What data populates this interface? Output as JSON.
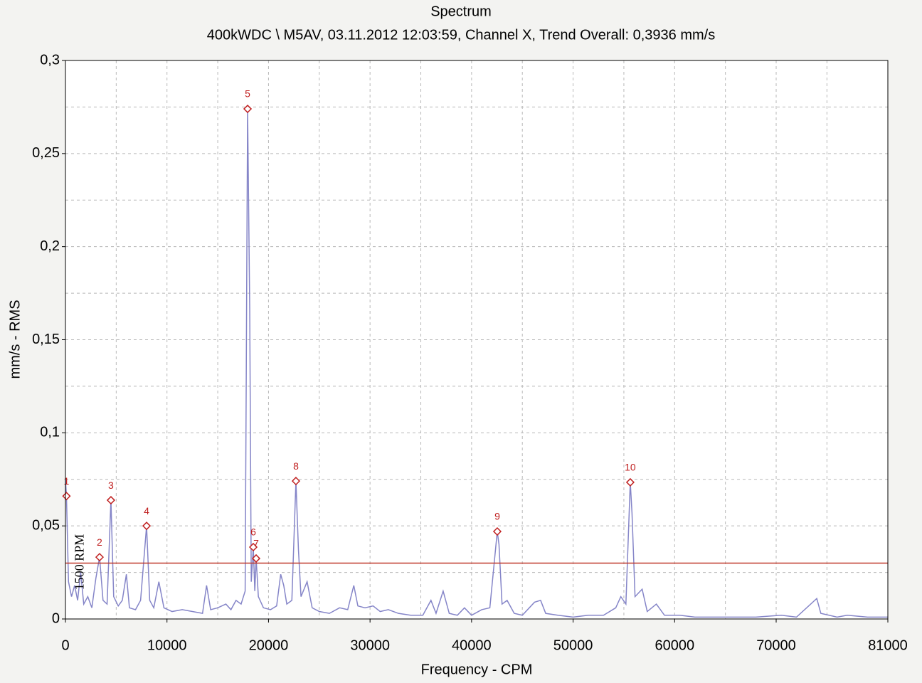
{
  "chart_data": {
    "type": "spectrum",
    "title": "Spectrum",
    "subtitle": "400kWDC \\ M5AV, 03.11.2012 12:03:59, Channel X, Trend Overall: 0,3936 mm/s",
    "x_label": "Frequency - CPM",
    "y_label": "mm/s - RMS",
    "xlim": [
      0,
      81000
    ],
    "ylim": [
      0,
      0.3
    ],
    "xticks": [
      0,
      10000,
      20000,
      30000,
      40000,
      50000,
      60000,
      70000,
      81000
    ],
    "xminorticks": [
      5000,
      15000,
      25000,
      35000,
      45000,
      55000,
      65000,
      75000
    ],
    "yticks": [
      0,
      {
        "value": 0.05,
        "label": "0,05"
      },
      {
        "value": 0.1,
        "label": "0,1"
      },
      {
        "value": 0.15,
        "label": "0,15"
      },
      {
        "value": 0.2,
        "label": "0,2"
      },
      {
        "value": 0.25,
        "label": "0,25"
      },
      {
        "value": 0.3,
        "label": "0,3"
      }
    ],
    "yminorticks": [
      0.025,
      0.075,
      0.125,
      0.175,
      0.225,
      0.275
    ],
    "grid": true,
    "color": "#8585c8",
    "x": [
      0,
      100,
      300,
      600,
      900,
      1200,
      1500,
      1800,
      2200,
      2600,
      3000,
      3360,
      3700,
      4100,
      4480,
      4750,
      5200,
      5600,
      6000,
      6300,
      6900,
      7400,
      7990,
      8300,
      8700,
      9200,
      9700,
      10500,
      11500,
      12500,
      13500,
      13900,
      14300,
      15000,
      15800,
      16300,
      16800,
      17300,
      17700,
      17940,
      18150,
      18300,
      18500,
      18650,
      18780,
      19000,
      19500,
      20200,
      20800,
      21200,
      21500,
      21800,
      22300,
      22700,
      22950,
      23200,
      23800,
      24300,
      25000,
      26000,
      27000,
      27800,
      28400,
      28800,
      29500,
      30300,
      31000,
      31800,
      32800,
      34000,
      35200,
      36000,
      36500,
      37200,
      37800,
      38600,
      39300,
      40000,
      41000,
      41800,
      42530,
      42700,
      43000,
      43500,
      44200,
      45000,
      46200,
      46800,
      47300,
      48500,
      50000,
      51500,
      53000,
      54200,
      54700,
      55200,
      55630,
      55800,
      56100,
      56800,
      57300,
      58200,
      59000,
      60500,
      62000,
      64000,
      66000,
      68000,
      70500,
      72000,
      74000,
      74400,
      76000,
      77000,
      79000,
      81000
    ],
    "values": [
      0.075,
      0.066,
      0.02,
      0.012,
      0.018,
      0.01,
      0.025,
      0.008,
      0.012,
      0.006,
      0.022,
      0.0332,
      0.01,
      0.008,
      0.0638,
      0.012,
      0.007,
      0.01,
      0.024,
      0.006,
      0.005,
      0.01,
      0.05,
      0.01,
      0.006,
      0.02,
      0.006,
      0.004,
      0.005,
      0.004,
      0.003,
      0.018,
      0.005,
      0.006,
      0.008,
      0.005,
      0.01,
      0.008,
      0.015,
      0.274,
      0.166,
      0.02,
      0.0386,
      0.015,
      0.0325,
      0.012,
      0.006,
      0.005,
      0.007,
      0.024,
      0.018,
      0.008,
      0.01,
      0.0741,
      0.037,
      0.012,
      0.02,
      0.006,
      0.004,
      0.003,
      0.006,
      0.005,
      0.018,
      0.007,
      0.006,
      0.007,
      0.004,
      0.005,
      0.003,
      0.002,
      0.002,
      0.01,
      0.003,
      0.015,
      0.003,
      0.002,
      0.006,
      0.002,
      0.005,
      0.006,
      0.047,
      0.04,
      0.008,
      0.01,
      0.003,
      0.002,
      0.009,
      0.01,
      0.003,
      0.002,
      0.001,
      0.002,
      0.002,
      0.006,
      0.012,
      0.008,
      0.0734,
      0.057,
      0.012,
      0.016,
      0.004,
      0.008,
      0.002,
      0.002,
      0.001,
      0.001,
      0.001,
      0.001,
      0.002,
      0.001,
      0.011,
      0.003,
      0.001,
      0.002,
      0.001,
      0.001
    ],
    "peaks": {
      "color": "#c02020",
      "labels": [
        "1",
        "2",
        "3",
        "4",
        "5",
        "6",
        "7",
        "8",
        "9",
        "10"
      ],
      "x": [
        100,
        3360,
        4480,
        7990,
        17940,
        18500,
        18780,
        22700,
        42530,
        55630
      ],
      "values": [
        0.066,
        0.0332,
        0.0638,
        0.05,
        0.274,
        0.0386,
        0.0325,
        0.0741,
        0.047,
        0.0734
      ]
    },
    "threshold": {
      "value": 0.03,
      "color": "#c0392b"
    },
    "annotation": {
      "text": "1500 RPM",
      "x": 1500
    }
  }
}
